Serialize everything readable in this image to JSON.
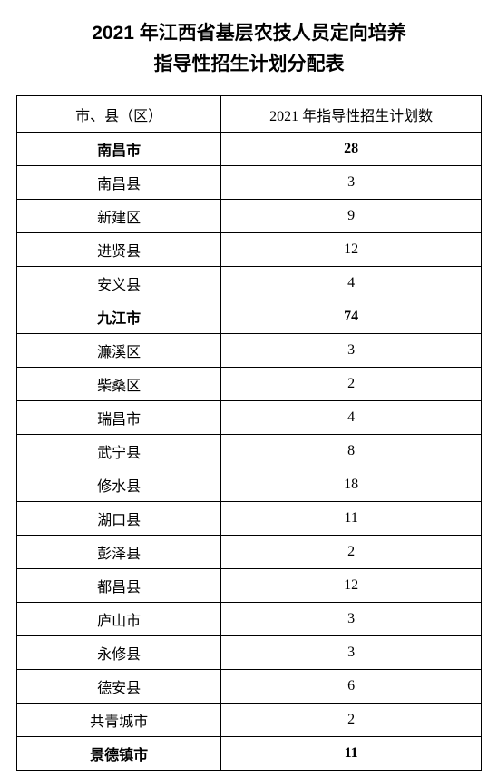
{
  "title_line1": "2021 年江西省基层农技人员定向培养",
  "title_line2": "指导性招生计划分配表",
  "table": {
    "columns": [
      "市、县（区）",
      "2021 年指导性招生计划数"
    ],
    "rows": [
      {
        "region": "南昌市",
        "count": "28",
        "bold": true
      },
      {
        "region": "南昌县",
        "count": "3",
        "bold": false
      },
      {
        "region": "新建区",
        "count": "9",
        "bold": false
      },
      {
        "region": "进贤县",
        "count": "12",
        "bold": false
      },
      {
        "region": "安义县",
        "count": "4",
        "bold": false
      },
      {
        "region": "九江市",
        "count": "74",
        "bold": true
      },
      {
        "region": "濂溪区",
        "count": "3",
        "bold": false
      },
      {
        "region": "柴桑区",
        "count": "2",
        "bold": false
      },
      {
        "region": "瑞昌市",
        "count": "4",
        "bold": false
      },
      {
        "region": "武宁县",
        "count": "8",
        "bold": false
      },
      {
        "region": "修水县",
        "count": "18",
        "bold": false
      },
      {
        "region": "湖口县",
        "count": "11",
        "bold": false
      },
      {
        "region": "彭泽县",
        "count": "2",
        "bold": false
      },
      {
        "region": "都昌县",
        "count": "12",
        "bold": false
      },
      {
        "region": "庐山市",
        "count": "3",
        "bold": false
      },
      {
        "region": "永修县",
        "count": "3",
        "bold": false
      },
      {
        "region": "德安县",
        "count": "6",
        "bold": false
      },
      {
        "region": "共青城市",
        "count": "2",
        "bold": false
      },
      {
        "region": "景德镇市",
        "count": "11",
        "bold": true
      }
    ],
    "colors": {
      "background": "#ffffff",
      "text": "#000000",
      "border": "#000000"
    },
    "font_sizes": {
      "title": 21,
      "header": 16,
      "cell": 16
    },
    "column_widths_pct": [
      44,
      56
    ]
  }
}
